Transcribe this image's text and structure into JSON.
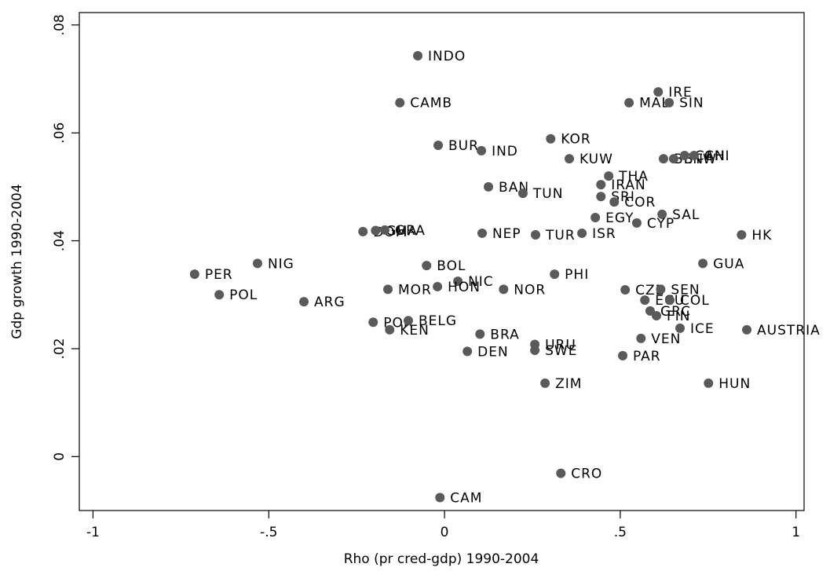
{
  "chart_data": {
    "type": "scatter",
    "xlabel": "Rho (pr cred-gdp) 1990-2004",
    "ylabel": "Gdp growth 1990-2004",
    "color": "#5a5a5a",
    "xlim": [
      -1.039,
      1.023
    ],
    "ylim": [
      -0.01,
      0.0823
    ],
    "xticks": [
      -1,
      {
        "value": -0.5,
        "label": "-.5"
      },
      0,
      {
        "value": 0.5,
        "label": ".5"
      },
      1
    ],
    "yticks": [
      0,
      {
        "value": 0.02,
        "label": ".02"
      },
      {
        "value": 0.04,
        "label": ".04"
      },
      {
        "value": 0.06,
        "label": ".06"
      },
      {
        "value": 0.08,
        "label": ".08"
      }
    ],
    "labels": [
      "INDO",
      "CAMB",
      "IRE",
      "MAL",
      "SIN",
      "BUR",
      "IND",
      "KOR",
      "KUW",
      "BEN",
      "BTW",
      "CAN",
      "CHI",
      "THA",
      "IRAN",
      "BAN",
      "TUN",
      "SRI",
      "COR",
      "EGY",
      "SAL",
      "CYP",
      "DOM",
      "GHA",
      "GRA",
      "NEP",
      "TUR",
      "ISR",
      "HK",
      "GUA",
      "NIG",
      "BOL",
      "PER",
      "PHI",
      "NIC",
      "HON",
      "MOR",
      "NOR",
      "CZE",
      "SEN",
      "POL",
      "ECU",
      "COL",
      "ARG",
      "GRC",
      "FIN",
      "ICE",
      "AUSTRIA",
      "POR",
      "BELG",
      "KEN",
      "BRA",
      "URU",
      "SWE",
      "DEN",
      "VEN",
      "PAR",
      "ZIM",
      "HUN",
      "CRO",
      "CAM"
    ],
    "x": [
      -0.076,
      -0.127,
      0.608,
      0.525,
      0.639,
      -0.018,
      0.105,
      0.302,
      0.355,
      0.623,
      0.652,
      0.683,
      0.71,
      0.467,
      0.445,
      0.125,
      0.223,
      0.445,
      0.483,
      0.429,
      0.619,
      0.547,
      -0.232,
      -0.196,
      -0.17,
      0.107,
      0.259,
      0.391,
      0.845,
      0.735,
      -0.532,
      -0.051,
      -0.711,
      0.313,
      0.038,
      -0.02,
      -0.161,
      0.168,
      0.514,
      0.615,
      -0.641,
      0.57,
      0.641,
      -0.4,
      0.585,
      0.603,
      0.67,
      0.86,
      -0.203,
      -0.103,
      -0.156,
      0.101,
      0.257,
      0.257,
      0.065,
      0.559,
      0.507,
      0.286,
      0.751,
      0.331,
      -0.013
    ],
    "values": [
      0.0743,
      0.0656,
      0.0676,
      0.0656,
      0.0656,
      0.0577,
      0.0567,
      0.0589,
      0.0552,
      0.0552,
      0.0552,
      0.0558,
      0.0558,
      0.052,
      0.0504,
      0.05,
      0.0488,
      0.0482,
      0.0472,
      0.0443,
      0.0449,
      0.0433,
      0.0417,
      0.0419,
      0.042,
      0.0414,
      0.0411,
      0.0414,
      0.0411,
      0.0358,
      0.0358,
      0.0354,
      0.0338,
      0.0338,
      0.0325,
      0.0315,
      0.031,
      0.031,
      0.0309,
      0.031,
      0.03,
      0.029,
      0.029,
      0.0287,
      0.027,
      0.0261,
      0.0238,
      0.0235,
      0.0249,
      0.0252,
      0.0235,
      0.0227,
      0.0208,
      0.0197,
      0.0195,
      0.0219,
      0.0187,
      0.0136,
      0.0136,
      -0.0031,
      -0.0076
    ]
  }
}
